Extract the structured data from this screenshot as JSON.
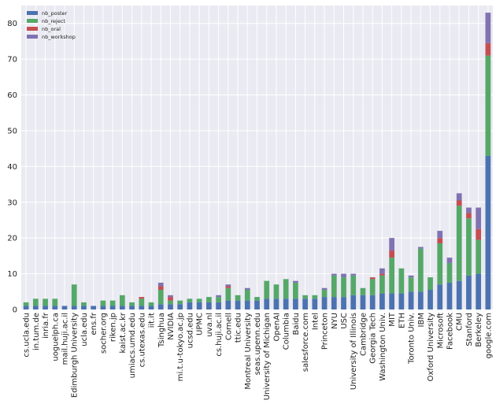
{
  "chart_data": {
    "type": "bar",
    "stacked": true,
    "orientation": "vertical",
    "background": "#eaeaf2",
    "grid": true,
    "legend_position": "top-left",
    "ylim": [
      0,
      85
    ],
    "yticks": [
      0,
      10,
      20,
      30,
      40,
      50,
      60,
      70,
      80
    ],
    "categories": [
      "cs.ucla.edu",
      "in.tum.de",
      "inria.fr",
      "uoguelph.ca",
      "mail.huji.ac.il",
      "Edimburgh University",
      "ucla.edu",
      "ens.fr",
      "socher.org",
      "riken.jp",
      "kaist.ac.kr",
      "umiacs.umd.edu",
      "cs.utexas.edu",
      "iit.it",
      "Tsinghua",
      "NVIDIA",
      "mi.t.u-tokyo.ac.jp",
      "ucsd.edu",
      "UPMC",
      "uva.nl",
      "cs.huji.ac.il",
      "Cornell",
      "ttic.edu",
      "Montreal University",
      "seas.upenn.edu",
      "University of Michigan",
      "OpenAI",
      "Columbia",
      "Baidu",
      "salesforce.com",
      "Intel",
      "Princeton",
      "NYU",
      "USC",
      "University of Illinois",
      "Cambridge",
      "Georgia Tech",
      "Washington Univ.",
      "MIT",
      "ETH",
      "Toronto Univ.",
      "IBM",
      "Oxford University",
      "Microsoft",
      "Facebook",
      "CMU",
      "Stanford",
      "Berkeley",
      "google.com"
    ],
    "series": [
      {
        "name": "nb_poster",
        "color": "#4c72b0",
        "values": [
          1,
          1,
          1,
          1,
          1,
          1,
          1,
          1,
          1,
          1,
          1,
          1,
          1,
          1,
          1.5,
          1.5,
          1.5,
          2,
          2,
          2,
          2,
          2.5,
          2.5,
          2.5,
          2.5,
          3,
          3,
          3,
          3,
          3,
          3,
          3.5,
          3.5,
          3.5,
          4,
          4,
          4,
          4.5,
          4.5,
          4.5,
          5,
          5,
          5.5,
          7,
          7.5,
          8,
          9.5,
          10,
          43
        ]
      },
      {
        "name": "nb_reject",
        "color": "#55a868",
        "values": [
          1,
          2,
          2,
          2,
          0,
          6,
          1,
          0,
          1.5,
          1.5,
          3,
          1,
          2,
          1,
          4,
          1,
          1,
          1,
          1,
          1.5,
          1.5,
          3.5,
          1.5,
          3,
          1,
          5,
          4,
          5.5,
          4.5,
          1,
          1,
          2,
          6,
          5.5,
          5.5,
          2,
          4.5,
          5,
          10,
          7,
          4,
          12,
          3.5,
          11.5,
          5.5,
          21,
          16,
          9.5,
          28
        ]
      },
      {
        "name": "nb_oral",
        "color": "#c44e52",
        "values": [
          0,
          0,
          0,
          0,
          0,
          0,
          0,
          0,
          0,
          0,
          0,
          0,
          0.5,
          0,
          1,
          1,
          0,
          0,
          0,
          0,
          0,
          0.5,
          0,
          0,
          0,
          0,
          0,
          0,
          0,
          0,
          0,
          0,
          0,
          0,
          0,
          0,
          0.5,
          0.5,
          2,
          0,
          0,
          0,
          0,
          1.5,
          0,
          1.5,
          1.5,
          3,
          3.5
        ]
      },
      {
        "name": "nb_workshop",
        "color": "#8172b2",
        "values": [
          0,
          0,
          0,
          0,
          0,
          0,
          0,
          0,
          0,
          0,
          0,
          0,
          0,
          0,
          1,
          0.5,
          0,
          0,
          0,
          0,
          0.5,
          0.5,
          0,
          0.5,
          0,
          0,
          0,
          0,
          0.5,
          0,
          0,
          0.5,
          0.5,
          1,
          0.5,
          0,
          0,
          1.5,
          3.5,
          0,
          0.5,
          0.5,
          0,
          2,
          1.5,
          2,
          1.5,
          6,
          8.5
        ]
      }
    ]
  }
}
